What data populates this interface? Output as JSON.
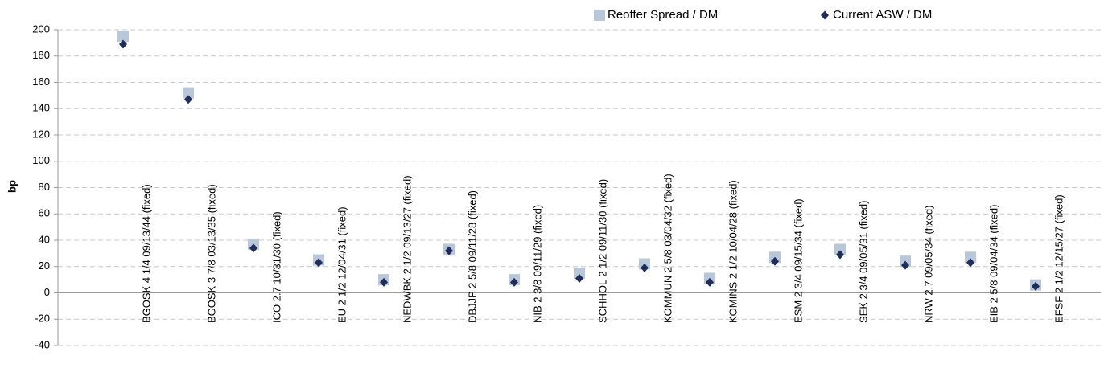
{
  "chart_data": {
    "type": "scatter",
    "y_label": "bp",
    "categories": [
      "BGOSK 4 1/4 09/13/44 (fixed)",
      "BGOSK 3 7/8 03/13/35 (fixed)",
      "ICO 2.7 10/31/30 (fixed)",
      "EU 2 1/2 12/04/31 (fixed)",
      "NEDWBK 2 1/2 09/13/27 (fixed)",
      "DBJJP 2 5/8 09/11/28 (fixed)",
      "NIB 2 3/8 09/11/29 (fixed)",
      "SCHHOL 2 1/2 09/11/30 (fixed)",
      "KOMMUN 2 5/8 03/04/32 (fixed)",
      "KOMINS 2 1/2 10/04/28 (fixed)",
      "ESM 2 3/4 09/15/34 (fixed)",
      "SEK 2 3/4 09/05/31 (fixed)",
      "NRW 2.7 09/05/34 (fixed)",
      "EIB 2 5/8 09/04/34 (fixed)",
      "EFSF 2 1/2 12/15/27 (fixed)"
    ],
    "series": [
      {
        "name": "Reoffer Spread / DM",
        "color": "#b8c7d9",
        "marker": "square",
        "values": [
          195,
          152,
          37,
          25,
          10,
          33,
          10,
          15,
          22,
          11,
          27,
          33,
          24,
          27,
          6
        ]
      },
      {
        "name": "Current ASW / DM",
        "color": "#1f2d5a",
        "marker": "diamond",
        "values": [
          189,
          147,
          34,
          23,
          8,
          32,
          8,
          11,
          19,
          8,
          24,
          29,
          21,
          23,
          5
        ]
      }
    ],
    "ylim": [
      -40,
      200
    ],
    "yticks": [
      -40,
      -20,
      0,
      20,
      40,
      60,
      80,
      100,
      120,
      140,
      160,
      180,
      200
    ],
    "grid": true,
    "legend": "top"
  }
}
